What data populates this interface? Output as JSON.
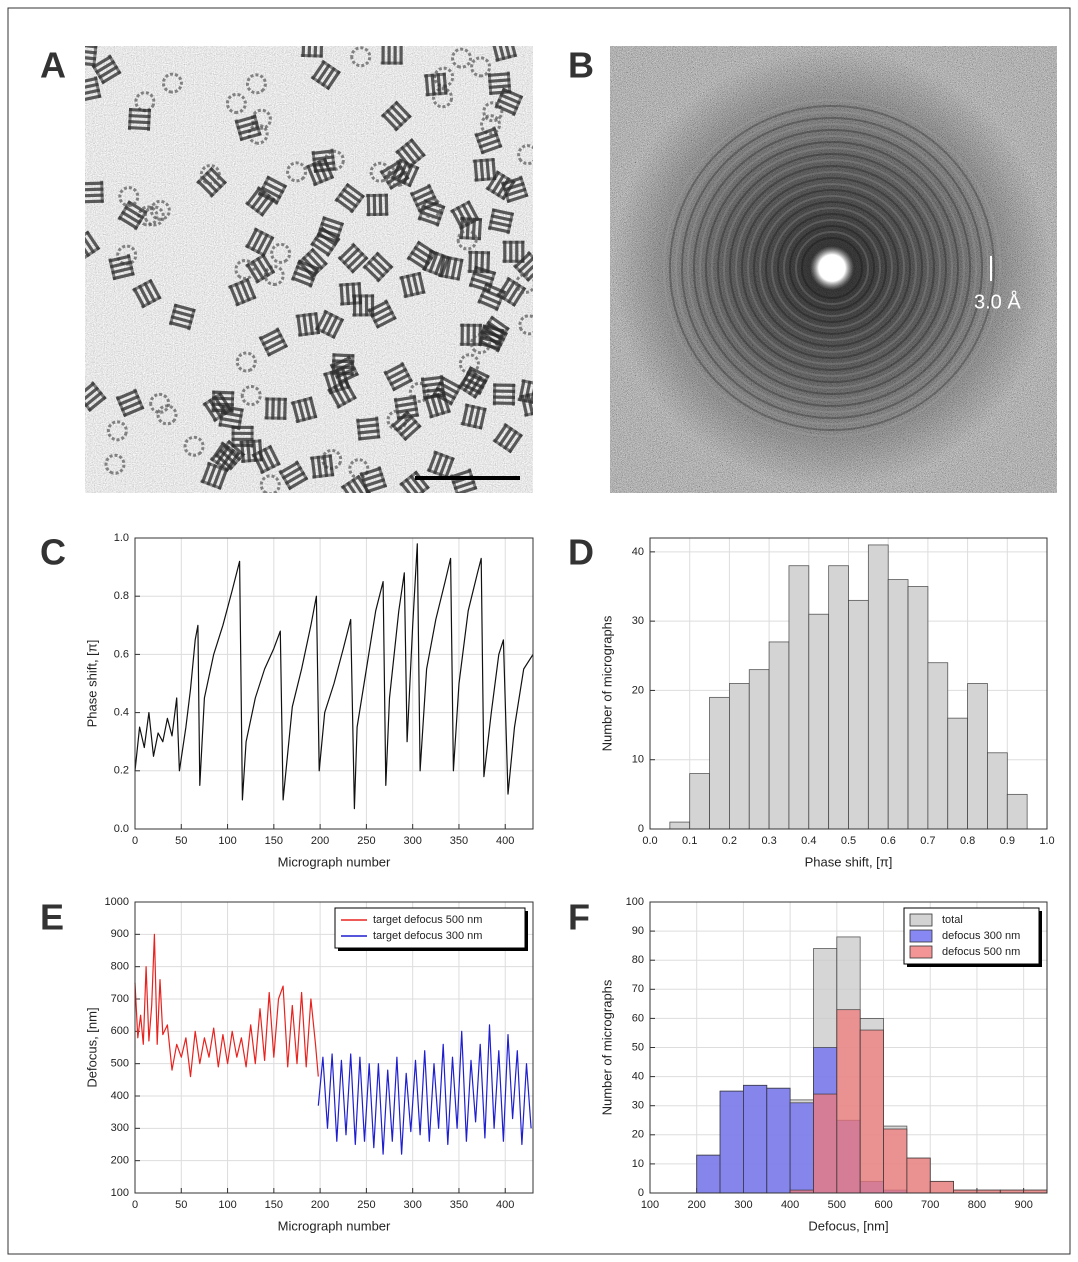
{
  "panels": [
    "A",
    "B",
    "C",
    "D",
    "E",
    "F"
  ],
  "image_b": {
    "scale_label": "3.0 Å"
  },
  "chart_data": [
    {
      "type": "line",
      "xlabel": "Micrograph number",
      "ylabel": "Phase shift, [π]",
      "color": "#111111",
      "grid": true,
      "xlim": [
        0,
        430
      ],
      "xticks": [
        0,
        50,
        100,
        150,
        200,
        250,
        300,
        350,
        400
      ],
      "ylim": [
        0,
        1
      ],
      "yticks": [
        {
          "value": 0,
          "label": "0.0"
        },
        0.2,
        0.4,
        0.6,
        0.8,
        {
          "value": 1,
          "label": "1.0"
        }
      ],
      "x": [
        0,
        5,
        10,
        15,
        20,
        25,
        30,
        35,
        40,
        45,
        48,
        55,
        60,
        65,
        68,
        70,
        75,
        85,
        95,
        105,
        113,
        116,
        120,
        130,
        140,
        150,
        157,
        160,
        170,
        180,
        190,
        196,
        199,
        205,
        215,
        225,
        233,
        237,
        240,
        250,
        260,
        268,
        271,
        275,
        285,
        291,
        294,
        300,
        305,
        308,
        315,
        325,
        335,
        341,
        344,
        350,
        360,
        370,
        374,
        377,
        385,
        393,
        398,
        403,
        410,
        420,
        430
      ],
      "values": [
        0.2,
        0.35,
        0.28,
        0.4,
        0.25,
        0.33,
        0.3,
        0.38,
        0.32,
        0.45,
        0.2,
        0.35,
        0.48,
        0.65,
        0.7,
        0.15,
        0.45,
        0.6,
        0.7,
        0.82,
        0.92,
        0.1,
        0.3,
        0.45,
        0.55,
        0.62,
        0.68,
        0.1,
        0.42,
        0.55,
        0.7,
        0.8,
        0.2,
        0.4,
        0.5,
        0.62,
        0.72,
        0.07,
        0.35,
        0.55,
        0.75,
        0.85,
        0.15,
        0.45,
        0.75,
        0.88,
        0.3,
        0.7,
        0.98,
        0.2,
        0.55,
        0.72,
        0.85,
        0.93,
        0.2,
        0.5,
        0.75,
        0.88,
        0.93,
        0.18,
        0.4,
        0.6,
        0.65,
        0.12,
        0.35,
        0.55,
        0.6
      ]
    },
    {
      "type": "histogram",
      "xlabel": "Phase shift, [π]",
      "ylabel": "Number of micrographs",
      "color": "#d4d4d4",
      "grid": true,
      "xlim": [
        0,
        1
      ],
      "xticks": [
        {
          "value": 0,
          "label": "0.0"
        },
        0.1,
        0.2,
        0.3,
        0.4,
        0.5,
        0.6,
        0.7,
        0.8,
        0.9,
        {
          "value": 1,
          "label": "1.0"
        }
      ],
      "ylim": [
        0,
        42
      ],
      "yticks": [
        0,
        10,
        20,
        30,
        40
      ],
      "bins": [
        0.05,
        0.1,
        0.15,
        0.2,
        0.25,
        0.3,
        0.35,
        0.4,
        0.45,
        0.5,
        0.55,
        0.6,
        0.65,
        0.7,
        0.75,
        0.8,
        0.85,
        0.9,
        0.95
      ],
      "values": [
        1,
        8,
        19,
        21,
        23,
        27,
        38,
        31,
        38,
        33,
        41,
        36,
        35,
        24,
        16,
        21,
        11,
        5
      ]
    },
    {
      "type": "line",
      "xlabel": "Micrograph number",
      "ylabel": "Defocus, [nm]",
      "grid": true,
      "legend": "upper right",
      "xlim": [
        0,
        430
      ],
      "xticks": [
        0,
        50,
        100,
        150,
        200,
        250,
        300,
        350,
        400
      ],
      "ylim": [
        100,
        1000
      ],
      "yticks": [
        100,
        200,
        300,
        400,
        500,
        600,
        700,
        800,
        900,
        1000
      ],
      "series": [
        {
          "name": "target defocus 500 nm",
          "color": "#e8231f",
          "x": [
            0,
            3,
            6,
            9,
            12,
            15,
            18,
            21,
            24,
            27,
            30,
            35,
            40,
            45,
            50,
            55,
            60,
            65,
            70,
            75,
            80,
            85,
            90,
            95,
            100,
            105,
            110,
            115,
            120,
            125,
            130,
            135,
            140,
            145,
            150,
            155,
            160,
            165,
            170,
            175,
            180,
            185,
            190,
            195,
            198
          ],
          "values": [
            750,
            580,
            650,
            560,
            800,
            570,
            680,
            900,
            560,
            760,
            590,
            620,
            480,
            560,
            520,
            580,
            460,
            600,
            500,
            580,
            520,
            610,
            490,
            590,
            500,
            600,
            520,
            580,
            490,
            620,
            500,
            670,
            510,
            720,
            520,
            700,
            740,
            490,
            680,
            500,
            720,
            490,
            700,
            560,
            460
          ]
        },
        {
          "name": "target defocus 300 nm",
          "color": "#1f1fd0",
          "x": [
            198,
            203,
            208,
            213,
            218,
            223,
            228,
            233,
            238,
            243,
            248,
            253,
            258,
            263,
            268,
            273,
            278,
            283,
            288,
            293,
            298,
            303,
            308,
            313,
            318,
            323,
            328,
            333,
            338,
            343,
            348,
            353,
            358,
            363,
            368,
            373,
            378,
            383,
            388,
            393,
            398,
            403,
            408,
            413,
            418,
            423,
            428
          ],
          "values": [
            370,
            520,
            300,
            530,
            260,
            510,
            280,
            530,
            250,
            520,
            260,
            500,
            240,
            500,
            220,
            480,
            260,
            520,
            220,
            470,
            290,
            510,
            280,
            540,
            260,
            500,
            300,
            560,
            250,
            520,
            300,
            600,
            260,
            510,
            320,
            560,
            270,
            620,
            300,
            540,
            260,
            590,
            330,
            540,
            250,
            500,
            300
          ]
        }
      ]
    },
    {
      "type": "histogram",
      "xlabel": "Defocus, [nm]",
      "ylabel": "Number of micrographs",
      "grid": true,
      "legend": "upper right",
      "xlim": [
        100,
        950
      ],
      "xticks": [
        100,
        200,
        300,
        400,
        500,
        600,
        700,
        800,
        900
      ],
      "ylim": [
        0,
        100
      ],
      "yticks": [
        0,
        10,
        20,
        30,
        40,
        50,
        60,
        70,
        80,
        90,
        100
      ],
      "bins": [
        200,
        250,
        300,
        350,
        400,
        450,
        500,
        550,
        600,
        650,
        700,
        750,
        800,
        850,
        900,
        950
      ],
      "series": [
        {
          "name": "total",
          "color": "#c8c8c8",
          "values": [
            13,
            35,
            37,
            36,
            32,
            84,
            88,
            60,
            23,
            12,
            4,
            1,
            1,
            1,
            1
          ]
        },
        {
          "name": "defocus 300 nm",
          "color": "#6a6af2",
          "values": [
            13,
            35,
            37,
            36,
            31,
            50,
            25,
            4,
            1,
            0,
            0,
            0,
            0,
            0,
            0
          ]
        },
        {
          "name": "defocus 500 nm",
          "color": "#f07a7a",
          "values": [
            0,
            0,
            0,
            0,
            1,
            34,
            63,
            56,
            22,
            12,
            4,
            1,
            1,
            1,
            1
          ]
        }
      ]
    }
  ]
}
